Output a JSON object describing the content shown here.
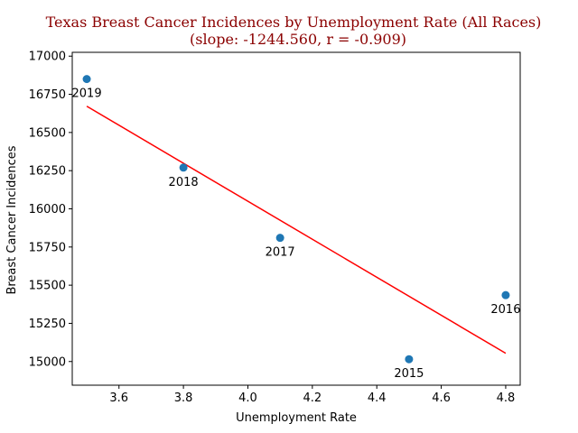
{
  "chart_data": {
    "type": "scatter",
    "title_line1": "Texas Breast Cancer Incidences by Unemployment Rate (All Races)",
    "title_line2": "(slope: -1244.560, r = -0.909)",
    "xlabel": "Unemployment Rate",
    "ylabel": "Breast Cancer Incidences",
    "xlim": [
      3.455,
      4.845
    ],
    "ylim": [
      14845,
      17025
    ],
    "x_ticks": [
      3.6,
      3.8,
      4.0,
      4.2,
      4.4,
      4.6,
      4.8
    ],
    "x_tick_labels": [
      "3.6",
      "3.8",
      "4.0",
      "4.2",
      "4.4",
      "4.6",
      "4.8"
    ],
    "y_ticks": [
      15000,
      15250,
      15500,
      15750,
      16000,
      16250,
      16500,
      16750,
      17000
    ],
    "y_tick_labels": [
      "15000",
      "15250",
      "15500",
      "15750",
      "16000",
      "16250",
      "16500",
      "16750",
      "17000"
    ],
    "points": [
      {
        "x": 3.5,
        "y": 16850,
        "label": "2019"
      },
      {
        "x": 3.8,
        "y": 16270,
        "label": "2018"
      },
      {
        "x": 4.1,
        "y": 15810,
        "label": "2017"
      },
      {
        "x": 4.8,
        "y": 15435,
        "label": "2016"
      },
      {
        "x": 4.5,
        "y": 15015,
        "label": "2015"
      }
    ],
    "fit_line": {
      "slope": -1244.56,
      "x_start": 3.5,
      "x_end": 4.8,
      "y_start": 16672
    },
    "colors": {
      "points": "#1f77b4",
      "fit_line": "#ff0000",
      "title": "#8b0000"
    },
    "grid": false,
    "legend": "none"
  }
}
